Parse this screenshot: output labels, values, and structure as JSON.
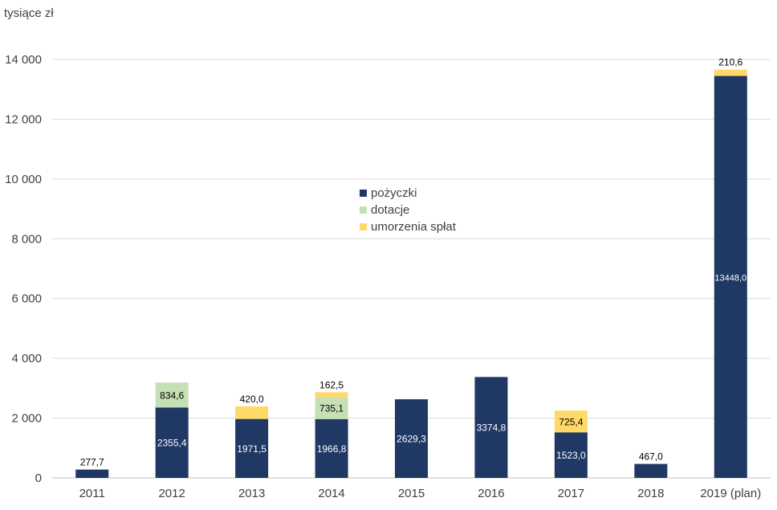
{
  "chart_data": {
    "type": "bar",
    "stacked": true,
    "unit_label": "tysiące zł",
    "categories": [
      "2011",
      "2012",
      "2013",
      "2014",
      "2015",
      "2016",
      "2017",
      "2018",
      "2019 (plan)"
    ],
    "series": [
      {
        "name": "pożyczki",
        "color": "#1f3864",
        "values": [
          277.7,
          2355.4,
          1971.5,
          1966.8,
          2629.3,
          3374.8,
          1523.0,
          467.0,
          13448.0
        ],
        "labels": [
          "277,7",
          "2355,4",
          "1971,5",
          "1966,8",
          "2629,3",
          "3374,8",
          "1523,0",
          "467,0",
          "13448,0"
        ]
      },
      {
        "name": "dotacje",
        "color": "#c5e0b4",
        "values": [
          0,
          834.6,
          0,
          735.1,
          0,
          0,
          0,
          0,
          0
        ],
        "labels": [
          "",
          "834,6",
          "",
          "735,1",
          "",
          "",
          "",
          "",
          ""
        ]
      },
      {
        "name": "umorzenia spłat",
        "color": "#ffd966",
        "values": [
          0,
          0,
          420.0,
          162.5,
          0,
          0,
          725.4,
          0,
          210.6
        ],
        "labels": [
          "",
          "",
          "420,0",
          "162,5",
          "",
          "",
          "725,4",
          "",
          "210,6"
        ]
      }
    ],
    "yticks": [
      "0",
      "2 000",
      "4 000",
      "6 000",
      "8 000",
      "10 000",
      "12 000",
      "14 000"
    ],
    "ylim": [
      0,
      14000
    ],
    "grid": true,
    "legend_position": "center"
  }
}
